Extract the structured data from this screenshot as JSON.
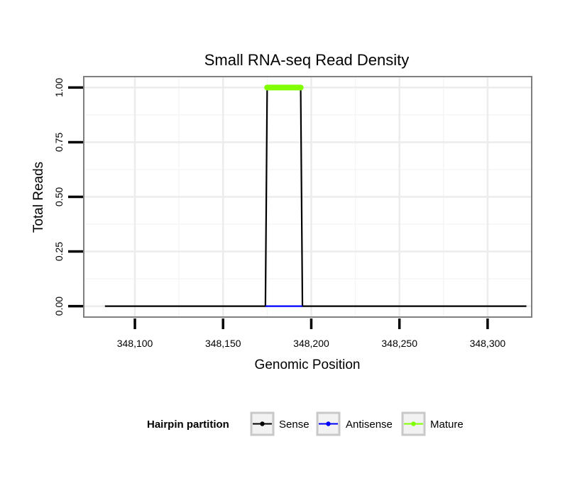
{
  "chart_data": {
    "type": "line",
    "title": "Small RNA-seq Read Density",
    "xlabel": "Genomic Position",
    "ylabel": "Total Reads",
    "xlim": [
      348071,
      348325
    ],
    "ylim": [
      -0.05,
      1.05
    ],
    "x_ticks": [
      {
        "value": 348100,
        "label": "348,100"
      },
      {
        "value": 348150,
        "label": "348,150"
      },
      {
        "value": 348200,
        "label": "348,200"
      },
      {
        "value": 348250,
        "label": "348,250"
      },
      {
        "value": 348300,
        "label": "348,300"
      }
    ],
    "y_ticks": [
      {
        "value": 0,
        "label": "0.00"
      },
      {
        "value": 0.25,
        "label": "0.25"
      },
      {
        "value": 0.5,
        "label": "0.50"
      },
      {
        "value": 0.75,
        "label": "0.75"
      },
      {
        "value": 1,
        "label": "1.00"
      }
    ],
    "grid": true,
    "series": [
      {
        "name": "Sense",
        "color": "#000000",
        "x": [
          348083,
          348174,
          348175,
          348194,
          348195,
          348322
        ],
        "y": [
          0,
          0,
          1,
          1,
          0,
          0
        ]
      },
      {
        "name": "Antisense",
        "color": "#0000ff",
        "x": [
          348174,
          348195
        ],
        "y": [
          0,
          0
        ]
      },
      {
        "name": "Mature",
        "color": "#7fff00",
        "x": [
          348175,
          348194
        ],
        "y": [
          1,
          1
        ]
      }
    ],
    "legend": {
      "title": "Hairpin partition",
      "position": "bottom",
      "entries": [
        "Sense",
        "Antisense",
        "Mature"
      ]
    }
  }
}
